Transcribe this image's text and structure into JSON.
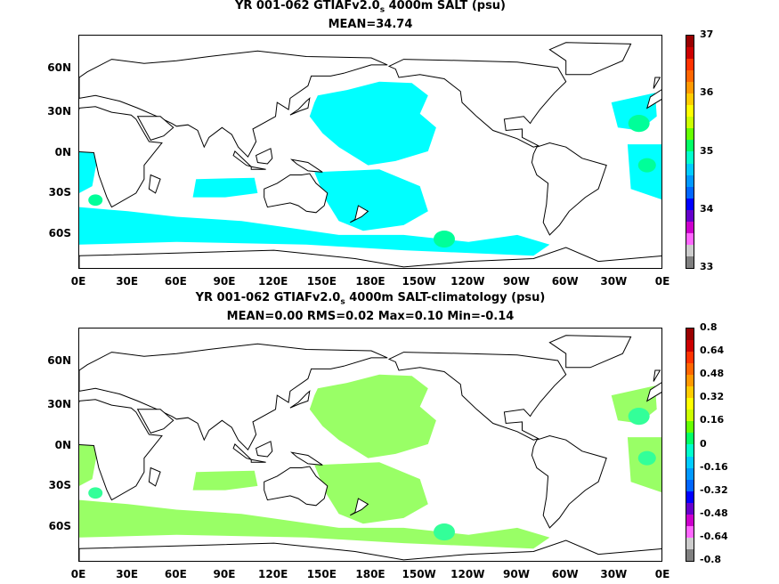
{
  "panels": [
    {
      "title_prefix": "YR 001-062 GTIAFv2.0",
      "title_sub": "s",
      "title_suffix": " 4000m SALT (psu)",
      "stats": "MEAN=34.74",
      "fill_color": "#00ffff",
      "accent_color": "#00ff99"
    },
    {
      "title_prefix": "YR 001-062 GTIAFv2.0",
      "title_sub": "s",
      "title_suffix": " 4000m SALT-climatology (psu)",
      "stats": "MEAN=0.00   RMS=0.02   Max=0.10   Min=-0.14",
      "fill_color": "#99ff66",
      "accent_color": "#33ff99"
    }
  ],
  "lat_labels": [
    "60N",
    "30N",
    "0N",
    "30S",
    "60S"
  ],
  "lon_labels": [
    "0E",
    "30E",
    "60E",
    "90E",
    "120E",
    "150E",
    "180E",
    "150W",
    "120W",
    "90W",
    "60W",
    "30W",
    "0E"
  ],
  "colorbar_top": {
    "labels": [
      "37",
      "36",
      "35",
      "34",
      "33"
    ],
    "colors": [
      "#990000",
      "#cc0000",
      "#ff3300",
      "#ff6600",
      "#ff9900",
      "#ffcc00",
      "#ffff00",
      "#ccff00",
      "#66ff00",
      "#00ff66",
      "#00ffcc",
      "#00ccff",
      "#0099ff",
      "#0066ff",
      "#0000ff",
      "#6600cc",
      "#cc00cc",
      "#ff66ff",
      "#cccccc",
      "#808080"
    ]
  },
  "colorbar_bottom": {
    "labels": [
      "0.8",
      "0.64",
      "0.48",
      "0.32",
      "0.16",
      "0",
      "-0.16",
      "-0.32",
      "-0.48",
      "-0.64",
      "-0.8"
    ],
    "colors": [
      "#990000",
      "#cc0000",
      "#ff3300",
      "#ff6600",
      "#ff9900",
      "#ffcc00",
      "#ffff00",
      "#ccff00",
      "#66ff00",
      "#00ff66",
      "#00ffcc",
      "#00ccff",
      "#0099ff",
      "#0066ff",
      "#0000ff",
      "#6600cc",
      "#cc00cc",
      "#ff66ff",
      "#cccccc",
      "#808080"
    ]
  }
}
